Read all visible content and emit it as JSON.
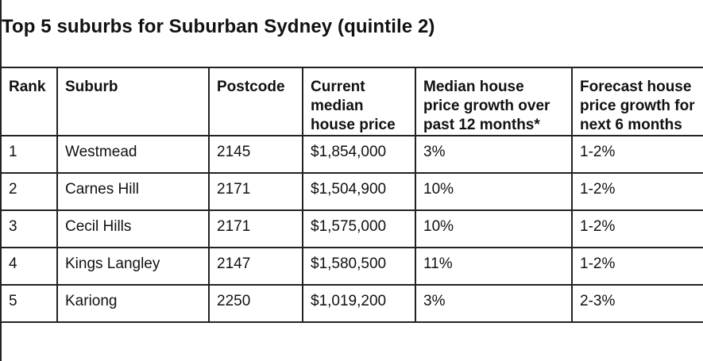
{
  "title": "Top 5 suburbs for Suburban Sydney (quintile 2)",
  "headers": {
    "rank": "Rank",
    "suburb": "Suburb",
    "postcode": "Postcode",
    "price": "Current median house price",
    "growth": "Median house price growth over past 12 months*",
    "forecast_line1": "Forecast house",
    "forecast_line2": "price growth for",
    "forecast_line3": "next 6 months"
  },
  "rows": [
    {
      "rank": "1",
      "suburb": "Westmead",
      "postcode": "2145",
      "price": "$1,854,000",
      "growth": "3%",
      "forecast": "1-2%"
    },
    {
      "rank": "2",
      "suburb": "Carnes Hill",
      "postcode": "2171",
      "price": "$1,504,900",
      "growth": "10%",
      "forecast": "1-2%"
    },
    {
      "rank": "3",
      "suburb": "Cecil Hills",
      "postcode": "2171",
      "price": "$1,575,000",
      "growth": "10%",
      "forecast": "1-2%"
    },
    {
      "rank": "4",
      "suburb": "Kings Langley",
      "postcode": "2147",
      "price": "$1,580,500",
      "growth": "11%",
      "forecast": "1-2%"
    },
    {
      "rank": "5",
      "suburb": "Kariong",
      "postcode": "2250",
      "price": "$1,019,200",
      "growth": "3%",
      "forecast": "2-3%"
    }
  ]
}
